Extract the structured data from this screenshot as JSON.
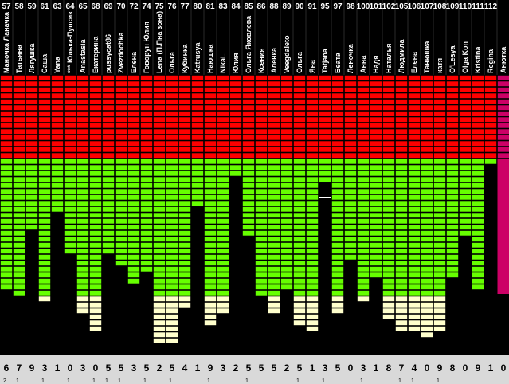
{
  "chart_data": {
    "type": "bar",
    "columns": [
      {
        "num": "57",
        "name": "Маночка Ланачка",
        "bottom": "6",
        "mark": "2",
        "green_end": 21,
        "yellow_end": 21
      },
      {
        "num": "58",
        "name": "Татьяна",
        "bottom": "7",
        "mark": "1",
        "green_end": 22,
        "yellow_end": 22
      },
      {
        "num": "59",
        "name": "Лягушка",
        "bottom": "9",
        "mark": "",
        "green_end": 11,
        "yellow_end": 11
      },
      {
        "num": "61",
        "name": "Саша",
        "bottom": "3",
        "mark": "1",
        "green_end": 22,
        "yellow_end": 23
      },
      {
        "num": "63",
        "name": "Yana",
        "bottom": "1",
        "mark": "",
        "green_end": 8,
        "yellow_end": 8
      },
      {
        "num": "64",
        "name": "*** Юлька-Пупсик",
        "bottom": "0",
        "mark": "1",
        "green_end": 15,
        "yellow_end": 15
      },
      {
        "num": "65",
        "name": "Anastasia",
        "bottom": "3",
        "mark": "",
        "green_end": 22,
        "yellow_end": 25
      },
      {
        "num": "68",
        "name": "Екатерина",
        "bottom": "0",
        "mark": "1",
        "green_end": 22,
        "yellow_end": 28
      },
      {
        "num": "69",
        "name": "pussycat86",
        "bottom": "5",
        "mark": "1",
        "green_end": 15,
        "yellow_end": 15
      },
      {
        "num": "70",
        "name": "Zvezdochka",
        "bottom": "5",
        "mark": "1",
        "green_end": 17,
        "yellow_end": 17
      },
      {
        "num": "72",
        "name": "Елена",
        "bottom": "3",
        "mark": "",
        "green_end": 20,
        "yellow_end": 20
      },
      {
        "num": "74",
        "name": "Говорун Юлия",
        "bottom": "5",
        "mark": "1",
        "green_end": 18,
        "yellow_end": 18
      },
      {
        "num": "75",
        "name": "Lena (П.Пна зона)",
        "bottom": "2",
        "mark": "",
        "green_end": 22,
        "yellow_end": 30
      },
      {
        "num": "76",
        "name": "Ольга",
        "bottom": "5",
        "mark": "1",
        "green_end": 22,
        "yellow_end": 30
      },
      {
        "num": "77",
        "name": "Кубинка",
        "bottom": "4",
        "mark": "",
        "green_end": 22,
        "yellow_end": 24
      },
      {
        "num": "80",
        "name": "Katrusya",
        "bottom": "1",
        "mark": "",
        "green_end": 7,
        "yellow_end": 7
      },
      {
        "num": "81",
        "name": "Наюшка",
        "bottom": "9",
        "mark": "1",
        "green_end": 22,
        "yellow_end": 27
      },
      {
        "num": "83",
        "name": "NikaL",
        "bottom": "3",
        "mark": "",
        "green_end": 22,
        "yellow_end": 25
      },
      {
        "num": "84",
        "name": "Юлия",
        "bottom": "2",
        "mark": "",
        "green_end": 2,
        "yellow_end": 2
      },
      {
        "num": "85",
        "name": "Ольга Яковлева",
        "bottom": "5",
        "mark": "1",
        "green_end": 12,
        "yellow_end": 12
      },
      {
        "num": "86",
        "name": "Ксения",
        "bottom": "5",
        "mark": "",
        "green_end": 22,
        "yellow_end": 22
      },
      {
        "num": "88",
        "name": "Аленка",
        "bottom": "5",
        "mark": "",
        "green_end": 22,
        "yellow_end": 25
      },
      {
        "num": "89",
        "name": "Veegdaleto",
        "bottom": "2",
        "mark": "",
        "green_end": 21,
        "yellow_end": 21
      },
      {
        "num": "90",
        "name": "Ольга",
        "bottom": "5",
        "mark": "1",
        "green_end": 22,
        "yellow_end": 27
      },
      {
        "num": "91",
        "name": "Яна",
        "bottom": "1",
        "mark": "",
        "green_end": 22,
        "yellow_end": 28
      },
      {
        "num": "95",
        "name": "Tatjana",
        "bottom": "3",
        "mark": "1",
        "green_end": 3,
        "yellow_end": 3
      },
      {
        "num": "97",
        "name": "Беата",
        "bottom": "5",
        "mark": "",
        "green_end": 22,
        "yellow_end": 25
      },
      {
        "num": "98",
        "name": "Леночка",
        "bottom": "0",
        "mark": "",
        "green_end": 16,
        "yellow_end": 16
      },
      {
        "num": "100",
        "name": "Анна",
        "bottom": "3",
        "mark": "1",
        "green_end": 22,
        "yellow_end": 23
      },
      {
        "num": "101",
        "name": "Надя",
        "bottom": "1",
        "mark": "",
        "green_end": 19,
        "yellow_end": 19
      },
      {
        "num": "102",
        "name": "Наталья",
        "bottom": "8",
        "mark": "",
        "green_end": 22,
        "yellow_end": 26
      },
      {
        "num": "105",
        "name": "Людмила",
        "bottom": "7",
        "mark": "1",
        "green_end": 22,
        "yellow_end": 28
      },
      {
        "num": "106",
        "name": "Елена",
        "bottom": "4",
        "mark": "1",
        "green_end": 22,
        "yellow_end": 28
      },
      {
        "num": "107",
        "name": "Танюшка",
        "bottom": "0",
        "mark": "",
        "green_end": 22,
        "yellow_end": 29
      },
      {
        "num": "108",
        "name": "катя",
        "bottom": "9",
        "mark": "1",
        "green_end": 22,
        "yellow_end": 28
      },
      {
        "num": "109",
        "name": "O'Lesya",
        "bottom": "8",
        "mark": "",
        "green_end": 19,
        "yellow_end": 19
      },
      {
        "num": "110",
        "name": "Olga Kon",
        "bottom": "0",
        "mark": "",
        "green_end": 12,
        "yellow_end": 12
      },
      {
        "num": "111",
        "name": "Kristina",
        "bottom": "9",
        "mark": "",
        "green_end": 21,
        "yellow_end": 21
      },
      {
        "num": "112",
        "name": "Regina",
        "bottom": "1",
        "mark": "",
        "green_end": 0,
        "yellow_end": 0
      },
      {
        "num": "",
        "name": "Анютка",
        "bottom": "0",
        "mark": "",
        "green_end": -1,
        "yellow_end": -1
      }
    ],
    "red_rows": 14,
    "bar_rows": 32,
    "colors": {
      "red": "#ff0000",
      "green": "#66ff00",
      "yellow": "#ffffcc",
      "magenta": "#cc0066",
      "black": "#000000",
      "grid": "#000000",
      "bottom_bg": "#d9d9d9",
      "text_light": "#ffffff",
      "text_dark": "#000000"
    }
  }
}
